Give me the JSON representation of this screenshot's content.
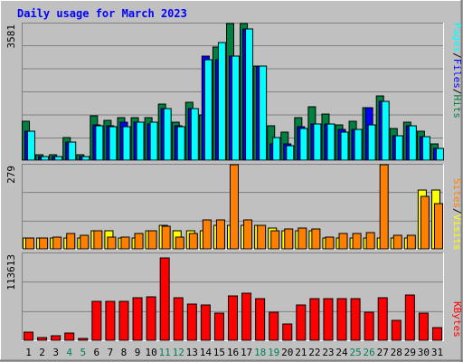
{
  "chart_data": {
    "type": "bar",
    "title": "Daily usage for March 2023",
    "categories": [
      "1",
      "2",
      "3",
      "4",
      "5",
      "6",
      "7",
      "8",
      "9",
      "10",
      "11",
      "12",
      "13",
      "14",
      "15",
      "16",
      "17",
      "18",
      "19",
      "20",
      "21",
      "22",
      "23",
      "24",
      "25",
      "26",
      "27",
      "28",
      "29",
      "30",
      "31"
    ],
    "weekend_days": [
      "4",
      "5",
      "11",
      "12",
      "18",
      "19",
      "25",
      "26"
    ],
    "panels": [
      {
        "max_label": "3581",
        "ylim": [
          0,
          3581
        ],
        "series": [
          {
            "name": "Hits",
            "color": "#008040",
            "values": [
              1009,
              150,
              150,
              587,
              150,
              1158,
              1041,
              1115,
              1120,
              1115,
              1480,
              1000,
              1518,
              1178,
              2972,
              3581,
              3581,
              2460,
              900,
              730,
              1115,
              1400,
              1200,
              930,
              1010,
              1370,
              1680,
              820,
              1000,
              760,
              430
            ]
          },
          {
            "name": "Files",
            "color": "#0000ff",
            "values": [
              750,
              100,
              100,
              480,
              100,
              930,
              900,
              990,
              1000,
              960,
              1350,
              900,
              1350,
              2720,
              2640,
              2720,
              3430,
              2460,
              430,
              430,
              870,
              950,
              950,
              810,
              810,
              1370,
              1540,
              630,
              890,
              620,
              320
            ]
          },
          {
            "name": "Pages",
            "color": "#00ffff",
            "values": [
              760,
              100,
              100,
              480,
              100,
              900,
              870,
              880,
              1000,
              990,
              1350,
              880,
              1350,
              2640,
              3080,
              2720,
              3430,
              2460,
              600,
              390,
              830,
              950,
              950,
              740,
              810,
              930,
              1540,
              630,
              890,
              620,
              320
            ]
          }
        ]
      },
      {
        "max_label": "279",
        "ylim": [
          0,
          279
        ],
        "series": [
          {
            "name": "Visits",
            "color": "#ffff00",
            "values": [
              35,
              35,
              35,
              35,
              35,
              60,
              60,
              35,
              35,
              60,
              77,
              60,
              60,
              60,
              77,
              77,
              77,
              77,
              70,
              60,
              60,
              60,
              35,
              35,
              35,
              35,
              35,
              35,
              35,
              196,
              196
            ]
          },
          {
            "name": "Sites",
            "color": "#ff8000",
            "values": [
              35,
              35,
              40,
              50,
              45,
              60,
              40,
              40,
              50,
              60,
              75,
              40,
              50,
              95,
              95,
              279,
              95,
              77,
              60,
              65,
              70,
              65,
              40,
              50,
              50,
              54,
              279,
              45,
              45,
              175,
              150
            ]
          }
        ]
      },
      {
        "max_label": "113613",
        "ylim": [
          0,
          113613
        ],
        "series": [
          {
            "name": "KBytes",
            "color": "#ff0000",
            "values": [
              11000,
              3000,
              6000,
              10000,
              2000,
              51000,
              51000,
              51000,
              56000,
              57000,
              108000,
              56000,
              47000,
              46000,
              35000,
              58000,
              62000,
              55000,
              37000,
              21000,
              46000,
              54000,
              54000,
              55000,
              54000,
              37000,
              56000,
              26000,
              59000,
              36000,
              16000
            ]
          }
        ]
      }
    ]
  },
  "legend": {
    "top": [
      {
        "text": "Pages",
        "color": "#00ffff"
      },
      {
        "text": "/",
        "color": "#000000"
      },
      {
        "text": "Files",
        "color": "#0000ff"
      },
      {
        "text": "/",
        "color": "#000000"
      },
      {
        "text": "Hits",
        "color": "#008040"
      }
    ],
    "middle": [
      {
        "text": "Sites",
        "color": "#ff8000"
      },
      {
        "text": "/",
        "color": "#000000"
      },
      {
        "text": "Visits",
        "color": "#ffff00"
      }
    ],
    "bottom": [
      {
        "text": "KBytes",
        "color": "#ff0000"
      }
    ]
  },
  "colors": {
    "background": "#c0c0c0",
    "title": "#0000ff",
    "weekday_label": "#000000",
    "weekend_label": "#00805c"
  }
}
